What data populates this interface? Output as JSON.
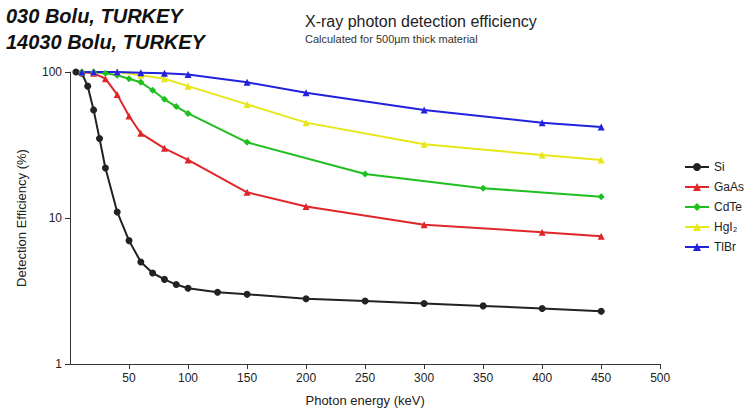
{
  "chart_data": {
    "type": "line",
    "title": "X-ray photon detection efficiency",
    "subtitle": "Calculated for 500µm thick material",
    "annotations": [
      "030 Bolu, TURKEY",
      "14030 Bolu, TURKEY"
    ],
    "x_label": "Photon energy (keV)",
    "y_label": "Detection Efficiency (%)",
    "xlim": [
      0,
      500
    ],
    "xticks": [
      50,
      100,
      150,
      200,
      250,
      300,
      350,
      400,
      450,
      500
    ],
    "ylim": [
      1,
      100
    ],
    "yticks": [
      1,
      10,
      100
    ],
    "log": "y",
    "grid": false,
    "legend": "right",
    "series": [
      {
        "name": "Si",
        "color": "#222222",
        "marker": "circle",
        "x": [
          5,
          10,
          15,
          20,
          25,
          30,
          40,
          50,
          60,
          70,
          80,
          90,
          100,
          125,
          150,
          200,
          250,
          300,
          350,
          400,
          450
        ],
        "values": [
          100,
          98,
          80,
          55,
          35,
          22,
          11,
          7,
          5,
          4.2,
          3.8,
          3.5,
          3.3,
          3.1,
          3.0,
          2.8,
          2.7,
          2.6,
          2.5,
          2.4,
          2.3
        ]
      },
      {
        "name": "GaAs",
        "color": "#e0262b",
        "marker": "triangle",
        "x": [
          10,
          20,
          30,
          40,
          50,
          60,
          80,
          100,
          150,
          200,
          300,
          400,
          450
        ],
        "values": [
          100,
          98,
          90,
          70,
          50,
          38,
          30,
          25,
          15,
          12,
          9,
          8,
          7.5
        ]
      },
      {
        "name": "CdTe",
        "color": "#1fbf1f",
        "marker": "diamond",
        "x": [
          10,
          20,
          30,
          40,
          50,
          60,
          70,
          80,
          90,
          100,
          150,
          250,
          350,
          450
        ],
        "values": [
          100,
          100,
          98,
          95,
          90,
          85,
          75,
          65,
          58,
          52,
          33,
          20,
          16,
          14
        ]
      },
      {
        "name": "HgI₂",
        "color": "#e6e619",
        "marker": "triangle",
        "x": [
          10,
          20,
          40,
          60,
          80,
          100,
          150,
          200,
          300,
          400,
          450
        ],
        "values": [
          100,
          100,
          100,
          95,
          90,
          80,
          60,
          45,
          32,
          27,
          25
        ]
      },
      {
        "name": "TlBr",
        "color": "#2222dd",
        "marker": "triangle",
        "x": [
          10,
          20,
          40,
          60,
          80,
          100,
          150,
          200,
          300,
          400,
          450
        ],
        "values": [
          100,
          100,
          100,
          99,
          98,
          96,
          85,
          72,
          55,
          45,
          42
        ]
      }
    ]
  }
}
